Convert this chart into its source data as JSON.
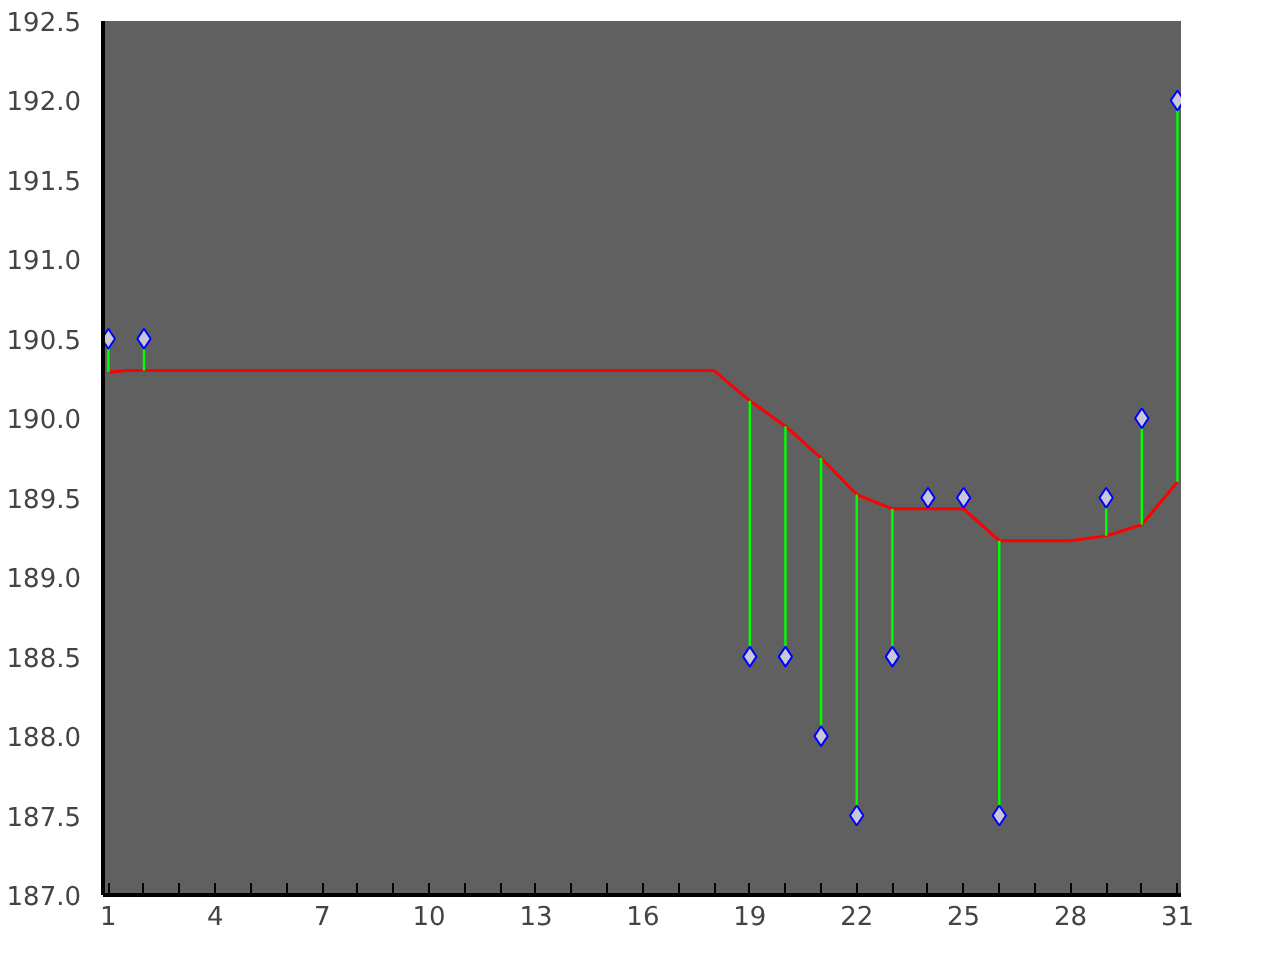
{
  "chart_data": {
    "type": "scatter",
    "xlim": [
      0.85,
      31.1
    ],
    "ylim": [
      187,
      192.5
    ],
    "xticks": [
      1,
      {
        "value": 2,
        "label": null
      },
      {
        "value": 3,
        "label": null
      },
      4,
      {
        "value": 5,
        "label": null
      },
      {
        "value": 6,
        "label": null
      },
      7,
      {
        "value": 8,
        "label": null
      },
      {
        "value": 9,
        "label": null
      },
      10,
      {
        "value": 11,
        "label": null
      },
      {
        "value": 12,
        "label": null
      },
      13,
      {
        "value": 14,
        "label": null
      },
      {
        "value": 15,
        "label": null
      },
      16,
      {
        "value": 17,
        "label": null
      },
      {
        "value": 18,
        "label": null
      },
      19,
      {
        "value": 20,
        "label": null
      },
      {
        "value": 21,
        "label": null
      },
      22,
      {
        "value": 23,
        "label": null
      },
      {
        "value": 24,
        "label": null
      },
      25,
      {
        "value": 26,
        "label": null
      },
      {
        "value": 27,
        "label": null
      },
      28,
      {
        "value": 29,
        "label": null
      },
      {
        "value": 30,
        "label": null
      },
      31
    ],
    "yticks": [
      {
        "value": 187,
        "label": "187.0"
      },
      187.5,
      {
        "value": 188,
        "label": "188.0"
      },
      188.5,
      {
        "value": 189,
        "label": "189.0"
      },
      189.5,
      {
        "value": 190,
        "label": "190.0"
      },
      190.5,
      {
        "value": 191,
        "label": "191.0"
      },
      191.5,
      {
        "value": 192,
        "label": "192.0"
      },
      192.5
    ],
    "grid": false,
    "series": [
      {
        "type": "line",
        "color": "#ff0000",
        "line_style": "solid",
        "marker": "none",
        "x": [
          1,
          1.5,
          18,
          19,
          20,
          21,
          22,
          23,
          25,
          26,
          28,
          29,
          30,
          31
        ],
        "values": [
          190.29,
          190.3,
          190.3,
          190.11,
          189.95,
          189.75,
          189.52,
          189.43,
          189.43,
          189.23,
          189.23,
          189.26,
          189.33,
          189.6
        ]
      },
      {
        "color": "#c8c8d8",
        "marker": "diamond",
        "x": [
          1,
          2,
          19,
          20,
          21,
          22,
          23,
          24,
          25,
          26,
          29,
          30,
          31
        ],
        "values": [
          190.5,
          190.5,
          188.5,
          188.5,
          188.0,
          187.5,
          188.5,
          189.5,
          189.5,
          187.5,
          189.5,
          190.0,
          192.0
        ],
        "errors": [
          [
            190.29,
            190.5
          ],
          [
            190.3,
            190.5
          ],
          [
            188.5,
            190.11
          ],
          [
            188.5,
            189.95
          ],
          [
            188.0,
            189.75
          ],
          [
            187.5,
            189.52
          ],
          [
            188.5,
            189.43
          ],
          null,
          null,
          [
            187.5,
            189.23
          ],
          [
            189.26,
            189.5
          ],
          [
            189.33,
            190.0
          ],
          [
            189.6,
            192.0
          ]
        ]
      }
    ]
  }
}
